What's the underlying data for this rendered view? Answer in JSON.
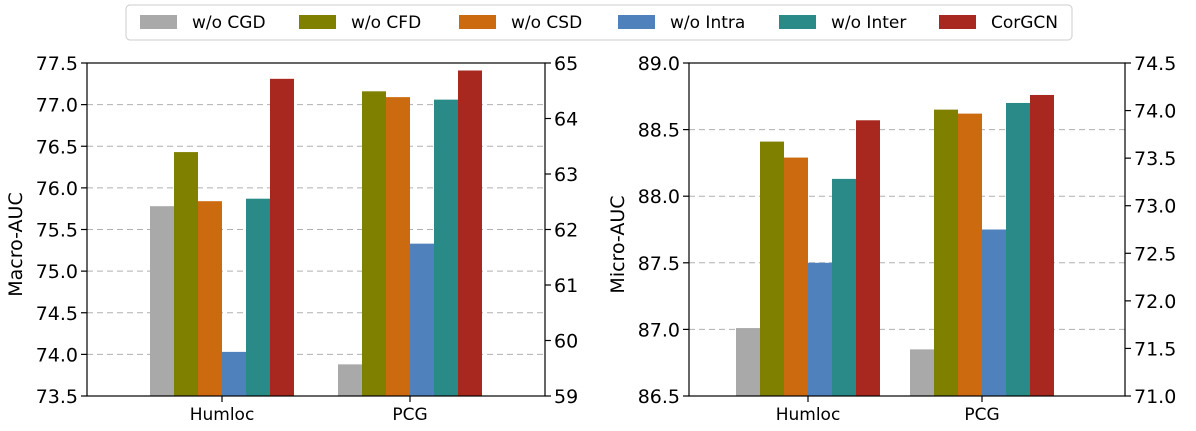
{
  "legend": [
    {
      "label": "w/o CGD",
      "color": "#a9a9a9"
    },
    {
      "label": "w/o CFD",
      "color": "#808000"
    },
    {
      "label": "w/o CSD",
      "color": "#cc6a10"
    },
    {
      "label": "w/o Intra",
      "color": "#4f81bd"
    },
    {
      "label": "w/o Inter",
      "color": "#2a8a88"
    },
    {
      "label": "CorGCN",
      "color": "#a8281f"
    }
  ],
  "chart_data": [
    {
      "type": "bar",
      "title": "",
      "xlabel": "",
      "ylabel": "Macro-AUC",
      "categories": [
        "Humloc",
        "PCG"
      ],
      "ylim": [
        73.5,
        77.5
      ],
      "yticks": [
        "73.5",
        "74.0",
        "74.5",
        "75.0",
        "75.5",
        "76.0",
        "76.5",
        "77.0",
        "77.5"
      ],
      "y2lim": [
        59,
        65
      ],
      "y2ticks": [
        "59",
        "60",
        "61",
        "62",
        "63",
        "64",
        "65"
      ],
      "grid": "horizontal dashed",
      "series": [
        {
          "name": "w/o CGD",
          "axis": "left",
          "values": [
            75.78,
            73.88
          ]
        },
        {
          "name": "w/o CFD",
          "axis": "left",
          "values": [
            76.43,
            77.16
          ]
        },
        {
          "name": "w/o CSD",
          "axis": "left",
          "values": [
            75.84,
            77.09
          ]
        },
        {
          "name": "w/o Intra",
          "axis": "left",
          "values": [
            74.03,
            75.33
          ]
        },
        {
          "name": "w/o Inter",
          "axis": "left",
          "values": [
            75.87,
            77.06
          ]
        },
        {
          "name": "CorGCN",
          "axis": "left",
          "values": [
            77.31,
            77.41
          ]
        }
      ]
    },
    {
      "type": "bar",
      "title": "",
      "xlabel": "",
      "ylabel": "Micro-AUC",
      "categories": [
        "Humloc",
        "PCG"
      ],
      "ylim": [
        86.5,
        89.0
      ],
      "yticks": [
        "86.5",
        "87.0",
        "87.5",
        "88.0",
        "88.5",
        "89.0"
      ],
      "y2lim": [
        71.0,
        74.5
      ],
      "y2ticks": [
        "71.0",
        "71.5",
        "72.0",
        "72.5",
        "73.0",
        "73.5",
        "74.0",
        "74.5"
      ],
      "grid": "horizontal dashed",
      "series": [
        {
          "name": "w/o CGD",
          "axis": "left",
          "values": [
            87.01,
            86.85
          ]
        },
        {
          "name": "w/o CFD",
          "axis": "left",
          "values": [
            88.41,
            88.65
          ]
        },
        {
          "name": "w/o CSD",
          "axis": "left",
          "values": [
            88.29,
            88.62
          ]
        },
        {
          "name": "w/o Intra",
          "axis": "left",
          "values": [
            87.5,
            87.75
          ]
        },
        {
          "name": "w/o Inter",
          "axis": "left",
          "values": [
            88.13,
            88.7
          ]
        },
        {
          "name": "CorGCN",
          "axis": "left",
          "values": [
            88.57,
            88.76
          ]
        }
      ]
    }
  ]
}
